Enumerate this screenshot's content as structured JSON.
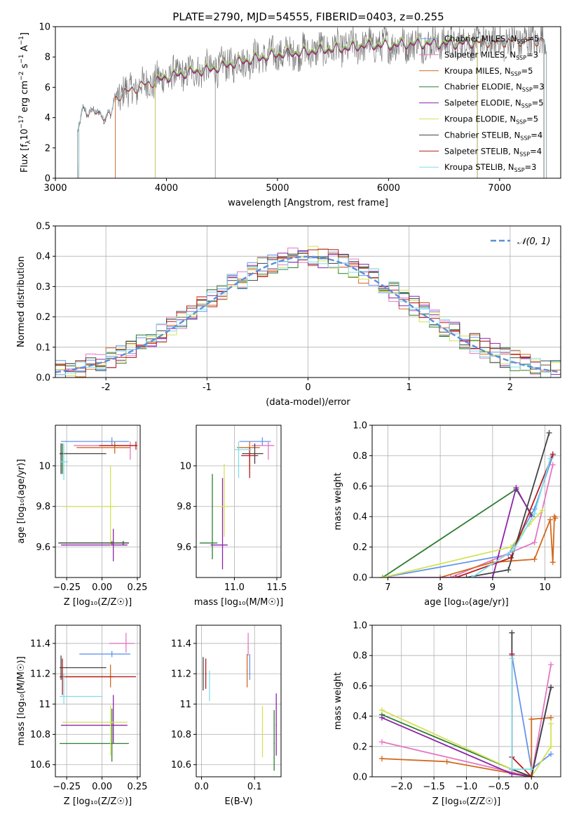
{
  "figure": {
    "title": "PLATE=2790, MJD=54555, FIBERID=0403, z=0.255"
  },
  "colors": {
    "C0": "#6495ed",
    "C1": "#e377c2",
    "C2": "#d2691e",
    "C3": "#2e7d32",
    "C4": "#8e24aa",
    "C5": "#d4e157",
    "C6": "#424242",
    "C7": "#b71c1c",
    "C8": "#80deea",
    "data": "#7a7a7a",
    "grid": "#b0b0b0",
    "normal": "#5b8fd9"
  },
  "chart_data": [
    {
      "id": "spectrum",
      "type": "line",
      "xlabel": "wavelength [Angstrom, rest frame]",
      "ylabel_parts": [
        "Flux [f",
        "λ",
        "10",
        "−17",
        " erg cm",
        "−2",
        " s",
        "−1",
        " A",
        "−1",
        "]"
      ],
      "xlim": [
        3000,
        7550
      ],
      "ylim": [
        0,
        10
      ],
      "xticks": [
        3000,
        4000,
        5000,
        6000,
        7000
      ],
      "yticks": [
        0,
        2,
        4,
        6,
        8,
        10
      ],
      "grid": false,
      "legend_position": "top-right",
      "observed_continuum": {
        "x": [
          3200,
          3250,
          3350,
          3500,
          3530,
          3600,
          3700,
          3800,
          3900,
          4000,
          4200,
          4400,
          4600,
          4800,
          5000,
          5200,
          5400,
          5600,
          5800,
          6000,
          6200,
          6400,
          6600,
          6800,
          7000,
          7200,
          7400
        ],
        "y": [
          3.0,
          4.6,
          4.3,
          4.1,
          5.2,
          5.6,
          5.9,
          6.2,
          6.4,
          6.7,
          7.0,
          7.2,
          7.6,
          7.9,
          8.2,
          8.3,
          8.5,
          8.6,
          8.8,
          8.8,
          8.9,
          8.9,
          8.9,
          9.0,
          9.0,
          9.1,
          9.1
        ]
      },
      "series": [
        {
          "name": "Chabrier MILES, N",
          "nssp": "5",
          "color_key": "C0",
          "xmin": 3540,
          "xmax": 7400,
          "offset": 0.0
        },
        {
          "name": "Salpeter MILES, N",
          "nssp": "3",
          "color_key": "C1",
          "xmin": 3540,
          "xmax": 7400,
          "offset": 0.05
        },
        {
          "name": "Kroupa MILES, N",
          "nssp": "5",
          "color_key": "C2",
          "xmin": 3540,
          "xmax": 7400,
          "offset": -0.05
        },
        {
          "name": "Chabrier ELODIE, N",
          "nssp": "3",
          "color_key": "C3",
          "xmin": 3900,
          "xmax": 6800,
          "offset": 0.08
        },
        {
          "name": "Salpeter ELODIE, N",
          "nssp": "5",
          "color_key": "C4",
          "xmin": 3900,
          "xmax": 6800,
          "offset": -0.08
        },
        {
          "name": "Kroupa ELODIE, N",
          "nssp": "5",
          "color_key": "C5",
          "xmin": 3900,
          "xmax": 6800,
          "offset": 0.12
        },
        {
          "name": "Chabrier STELIB, N",
          "nssp": "4",
          "color_key": "C6",
          "xmin": 3210,
          "xmax": 7400,
          "offset": 0.02
        },
        {
          "name": "Salpeter STELIB, N",
          "nssp": "4",
          "color_key": "C7",
          "xmin": 3210,
          "xmax": 7400,
          "offset": -0.02
        },
        {
          "name": "Kroupa STELIB, N",
          "nssp": "3",
          "color_key": "C8",
          "xmin": 3210,
          "xmax": 7400,
          "offset": 0.04
        }
      ],
      "legend_subscript": "SSP"
    },
    {
      "id": "residuals",
      "type": "histogram",
      "xlabel": "(data-model)/error",
      "ylabel": "Normed distribution",
      "xlim": [
        -2.5,
        2.5
      ],
      "ylim": [
        0,
        0.5
      ],
      "xticks": [
        -2,
        -1,
        0,
        1,
        2
      ],
      "yticks": [
        0.0,
        0.1,
        0.2,
        0.3,
        0.4,
        0.5
      ],
      "bin_width": 0.1,
      "grid": true,
      "legend_position": "top-right",
      "normal_label": "𝒩(0, 1)",
      "series_color_keys": [
        "C0",
        "C1",
        "C2",
        "C3",
        "C4",
        "C5",
        "C6",
        "C7",
        "C8"
      ]
    },
    {
      "id": "age_vs_Z",
      "type": "errorbar",
      "xlabel": "Z [log₁₀(Z/Z☉)]",
      "ylabel": "age  [log₁₀(age/yr)]",
      "xlim": [
        -0.33,
        0.27
      ],
      "ylim": [
        9.45,
        10.2
      ],
      "xticks": [
        -0.25,
        0.0,
        0.25
      ],
      "xticklabels": [
        "−0.25",
        "0.00",
        "0.25"
      ],
      "yticks": [
        9.6,
        9.8,
        10.0
      ],
      "grid": true,
      "points": [
        {
          "c": "C0",
          "x": 0.07,
          "xerr": [
            0.36,
            0.12
          ],
          "y": 10.12,
          "yerr": [
            0.02,
            0.02
          ]
        },
        {
          "c": "C1",
          "x": 0.2,
          "xerr": [
            0.4,
            0.05
          ],
          "y": 10.1,
          "yerr": [
            0.07,
            0.02
          ]
        },
        {
          "c": "C2",
          "x": 0.09,
          "xerr": [
            0.27,
            0.11
          ],
          "y": 10.09,
          "yerr": [
            0.03,
            0.03
          ]
        },
        {
          "c": "C3",
          "x": -0.28,
          "xerr": [
            0.02,
            0.02
          ],
          "y": 10.06,
          "yerr": [
            0.1,
            0.05
          ]
        },
        {
          "c": "C4",
          "x": 0.08,
          "xerr": [
            0.37,
            0.1
          ],
          "y": 9.61,
          "yerr": [
            0.08,
            0.08
          ]
        },
        {
          "c": "C5",
          "x": 0.06,
          "xerr": [
            0.34,
            0.04
          ],
          "y": 9.8,
          "yerr": [
            0.19,
            0.2
          ]
        },
        {
          "c": "C6",
          "x": -0.29,
          "xerr": [
            0.01,
            0.32
          ],
          "y": 10.06,
          "yerr": [
            0.1,
            0.05
          ]
        },
        {
          "c": "C7",
          "x": 0.24,
          "xerr": [
            0.26,
            0.01
          ],
          "y": 10.1,
          "yerr": [
            0.02,
            0.02
          ]
        },
        {
          "c": "C8",
          "x": -0.27,
          "xerr": [
            0.03,
            0.03
          ],
          "y": 10.02,
          "yerr": [
            0.09,
            0.09
          ]
        },
        {
          "c": "C3",
          "x": 0.07,
          "xerr": [
            0.38,
            0.12
          ],
          "y": 9.62,
          "yerr": [
            0.01,
            0.01
          ]
        },
        {
          "c": "C6",
          "x": 0.15,
          "xerr": [
            0.45,
            0.04
          ],
          "y": 9.62,
          "yerr": [
            0.01,
            0.01
          ]
        }
      ]
    },
    {
      "id": "age_vs_mass",
      "type": "errorbar",
      "xlabel": "mass [log₁₀(M/M☉)]",
      "xlim": [
        10.55,
        11.55
      ],
      "ylim": [
        9.45,
        10.2
      ],
      "xticks": [
        11.0,
        11.5
      ],
      "xticklabels": [
        "11.0",
        "11.5"
      ],
      "yticks": [
        9.6,
        9.8,
        10.0
      ],
      "grid": true,
      "points": [
        {
          "c": "C0",
          "x": 11.33,
          "xerr": [
            0.27,
            0.1
          ],
          "y": 10.12,
          "yerr": [
            0.02,
            0.02
          ]
        },
        {
          "c": "C1",
          "x": 11.4,
          "xerr": [
            0.2,
            0.07
          ],
          "y": 10.1,
          "yerr": [
            0.07,
            0.02
          ]
        },
        {
          "c": "C2",
          "x": 11.18,
          "xerr": [
            0.15,
            0.12
          ],
          "y": 10.09,
          "yerr": [
            0.11,
            0.03
          ]
        },
        {
          "c": "C3",
          "x": 10.74,
          "xerr": [
            0.15,
            0.06
          ],
          "y": 9.62,
          "yerr": [
            0.08,
            0.34
          ]
        },
        {
          "c": "C4",
          "x": 10.86,
          "xerr": [
            0.14,
            0.06
          ],
          "y": 9.61,
          "yerr": [
            0.12,
            0.33
          ]
        },
        {
          "c": "C5",
          "x": 10.88,
          "xerr": [
            0.08,
            0.05
          ],
          "y": 9.8,
          "yerr": [
            0.15,
            0.21
          ]
        },
        {
          "c": "C6",
          "x": 11.24,
          "xerr": [
            0.15,
            0.1
          ],
          "y": 10.06,
          "yerr": [
            0.05,
            0.05
          ]
        },
        {
          "c": "C7",
          "x": 11.18,
          "xerr": [
            0.1,
            0.1
          ],
          "y": 10.05,
          "yerr": [
            0.11,
            0.04
          ]
        },
        {
          "c": "C8",
          "x": 11.05,
          "xerr": [
            0.05,
            0.15
          ],
          "y": 10.08,
          "yerr": [
            0.14,
            0.04
          ]
        }
      ]
    },
    {
      "id": "weight_vs_age",
      "type": "line",
      "xlabel": "age  [log₁₀(age/yr)]",
      "ylabel": "mass weight",
      "xlim": [
        6.7,
        10.3
      ],
      "ylim": [
        0,
        1
      ],
      "xticks": [
        7,
        8,
        9,
        10
      ],
      "yticks": [
        0.0,
        0.2,
        0.4,
        0.6,
        0.8,
        1.0
      ],
      "grid": true,
      "series": [
        {
          "c": "C0",
          "x": [
            6.9,
            9.3,
            9.8,
            10.15
          ],
          "y": [
            0.0,
            0.15,
            0.45,
            0.8
          ]
        },
        {
          "c": "C1",
          "x": [
            8.2,
            9.8,
            10.15
          ],
          "y": [
            0.0,
            0.23,
            0.74
          ]
        },
        {
          "c": "C2",
          "x": [
            8.0,
            9.0,
            9.8,
            10.1,
            10.15,
            10.18,
            10.2
          ],
          "y": [
            0.0,
            0.1,
            0.12,
            0.38,
            0.1,
            0.4,
            0.39
          ]
        },
        {
          "c": "C3",
          "x": [
            6.9,
            9.45,
            9.75
          ],
          "y": [
            0.0,
            0.58,
            0.41
          ]
        },
        {
          "c": "C4",
          "x": [
            6.9,
            9.0,
            9.45,
            9.75
          ],
          "y": [
            0.0,
            0.0,
            0.59,
            0.4
          ]
        },
        {
          "c": "C5",
          "x": [
            6.9,
            9.35,
            9.7,
            9.95
          ],
          "y": [
            0.0,
            0.2,
            0.35,
            0.44
          ]
        },
        {
          "c": "C6",
          "x": [
            8.5,
            9.3,
            10.08
          ],
          "y": [
            0.0,
            0.05,
            0.95
          ]
        },
        {
          "c": "C7",
          "x": [
            8.3,
            9.35,
            10.15
          ],
          "y": [
            0.0,
            0.13,
            0.81
          ]
        },
        {
          "c": "C8",
          "x": [
            8.6,
            9.4,
            9.8,
            10.1
          ],
          "y": [
            0.0,
            0.18,
            0.42,
            0.78
          ]
        }
      ]
    },
    {
      "id": "mass_vs_Z",
      "type": "errorbar",
      "xlabel": "Z [log₁₀(Z/Z☉)]",
      "ylabel": "mass [log₁₀(M/M☉)]",
      "xlim": [
        -0.33,
        0.27
      ],
      "ylim": [
        10.52,
        11.52
      ],
      "xticks": [
        -0.25,
        0.0,
        0.25
      ],
      "xticklabels": [
        "−0.25",
        "0.00",
        "0.25"
      ],
      "yticks": [
        10.6,
        10.8,
        11.0,
        11.2,
        11.4
      ],
      "grid": true,
      "points": [
        {
          "c": "C0",
          "x": 0.07,
          "xerr": [
            0.23,
            0.13
          ],
          "y": 11.33,
          "yerr": [
            0.02,
            0.02
          ]
        },
        {
          "c": "C1",
          "x": 0.17,
          "xerr": [
            0.12,
            0.06
          ],
          "y": 11.4,
          "yerr": [
            0.06,
            0.07
          ]
        },
        {
          "c": "C2",
          "x": 0.06,
          "xerr": [
            0.32,
            0.02
          ],
          "y": 11.18,
          "yerr": [
            0.07,
            0.08
          ]
        },
        {
          "c": "C3",
          "x": 0.07,
          "xerr": [
            0.37,
            0.12
          ],
          "y": 10.74,
          "yerr": [
            0.12,
            0.23
          ]
        },
        {
          "c": "C4",
          "x": 0.08,
          "xerr": [
            0.37,
            0.1
          ],
          "y": 10.86,
          "yerr": [
            0.12,
            0.2
          ]
        },
        {
          "c": "C5",
          "x": 0.06,
          "xerr": [
            0.34,
            0.12
          ],
          "y": 10.88,
          "yerr": [
            0.22,
            0.11
          ]
        },
        {
          "c": "C6",
          "x": -0.29,
          "xerr": [
            0.01,
            0.32
          ],
          "y": 11.24,
          "yerr": [
            0.08,
            0.08
          ]
        },
        {
          "c": "C7",
          "x": -0.28,
          "xerr": [
            0.02,
            0.52
          ],
          "y": 11.18,
          "yerr": [
            0.12,
            0.12
          ]
        },
        {
          "c": "C8",
          "x": -0.27,
          "xerr": [
            0.03,
            0.27
          ],
          "y": 11.05,
          "yerr": [
            0.05,
            0.15
          ]
        }
      ]
    },
    {
      "id": "mass_vs_ebv",
      "type": "errorbar",
      "xlabel": "E(B-V)",
      "xlim": [
        -0.01,
        0.15
      ],
      "ylim": [
        10.52,
        11.52
      ],
      "xticks": [
        0.0,
        0.1
      ],
      "xticklabels": [
        "0.0",
        "0.1"
      ],
      "yticks": [
        10.6,
        10.8,
        11.0,
        11.2,
        11.4
      ],
      "grid": true,
      "points": [
        {
          "c": "C0",
          "x": 0.091,
          "xerr": [
            0.001,
            0.001
          ],
          "y": 11.2,
          "yerr": [
            0.04,
            0.13
          ]
        },
        {
          "c": "C1",
          "x": 0.088,
          "xerr": [
            0.001,
            0.001
          ],
          "y": 11.37,
          "yerr": [
            0.05,
            0.1
          ]
        },
        {
          "c": "C2",
          "x": 0.086,
          "xerr": [
            0.001,
            0.001
          ],
          "y": 11.22,
          "yerr": [
            0.11,
            0.11
          ]
        },
        {
          "c": "C3",
          "x": 0.137,
          "xerr": [
            0.001,
            0.001
          ],
          "y": 10.74,
          "yerr": [
            0.18,
            0.22
          ]
        },
        {
          "c": "C4",
          "x": 0.141,
          "xerr": [
            0.001,
            0.001
          ],
          "y": 10.86,
          "yerr": [
            0.2,
            0.21
          ]
        },
        {
          "c": "C5",
          "x": 0.115,
          "xerr": [
            0.001,
            0.001
          ],
          "y": 10.82,
          "yerr": [
            0.17,
            0.17
          ]
        },
        {
          "c": "C6",
          "x": 0.003,
          "xerr": [
            0.001,
            0.001
          ],
          "y": 11.2,
          "yerr": [
            0.11,
            0.11
          ]
        },
        {
          "c": "C7",
          "x": 0.008,
          "xerr": [
            0.001,
            0.001
          ],
          "y": 11.2,
          "yerr": [
            0.1,
            0.1
          ]
        },
        {
          "c": "C8",
          "x": 0.015,
          "xerr": [
            0.001,
            0.001
          ],
          "y": 11.12,
          "yerr": [
            0.1,
            0.1
          ]
        }
      ]
    },
    {
      "id": "weight_vs_Z",
      "type": "line",
      "xlabel": "Z [log₁₀(Z/Z☉)]",
      "ylabel": "mass weight",
      "xlim": [
        -2.45,
        0.45
      ],
      "ylim": [
        0,
        1
      ],
      "xticks": [
        -2.0,
        -1.5,
        -1.0,
        -0.5,
        0.0
      ],
      "xticklabels": [
        "−2.0",
        "−1.5",
        "−1.0",
        "−0.5",
        "0.0"
      ],
      "yticks": [
        0.0,
        0.2,
        0.4,
        0.6,
        0.8,
        1.0
      ],
      "grid": true,
      "series": [
        {
          "c": "C0",
          "x": [
            -0.3,
            0.0,
            0.3
          ],
          "y": [
            0.8,
            0.05,
            0.15
          ]
        },
        {
          "c": "C1",
          "x": [
            -2.3,
            -0.3,
            0.0,
            0.3
          ],
          "y": [
            0.23,
            0.03,
            0.0,
            0.74
          ]
        },
        {
          "c": "C2",
          "x": [
            -2.3,
            -1.3,
            0.0,
            0.0,
            0.3
          ],
          "y": [
            0.12,
            0.1,
            0.0,
            0.38,
            0.39
          ]
        },
        {
          "c": "C3",
          "x": [
            -2.3,
            -0.3,
            0.0
          ],
          "y": [
            0.41,
            0.05,
            0.0
          ]
        },
        {
          "c": "C4",
          "x": [
            -2.3,
            -0.3,
            0.0,
            0.3
          ],
          "y": [
            0.39,
            0.02,
            0.0,
            0.59
          ]
        },
        {
          "c": "C5",
          "x": [
            -2.3,
            -0.3,
            0.0,
            0.3,
            0.3
          ],
          "y": [
            0.44,
            0.05,
            0.0,
            0.2,
            0.35
          ]
        },
        {
          "c": "C6",
          "x": [
            -0.3,
            -0.3,
            0.0,
            0.3
          ],
          "y": [
            0.95,
            0.05,
            0.0,
            0.59
          ]
        },
        {
          "c": "C7",
          "x": [
            -0.3,
            -0.3,
            0.0
          ],
          "y": [
            0.81,
            0.13,
            0.0
          ]
        },
        {
          "c": "C8",
          "x": [
            -0.3,
            -0.3,
            0.0
          ],
          "y": [
            0.78,
            0.05,
            0.05
          ]
        }
      ]
    }
  ]
}
